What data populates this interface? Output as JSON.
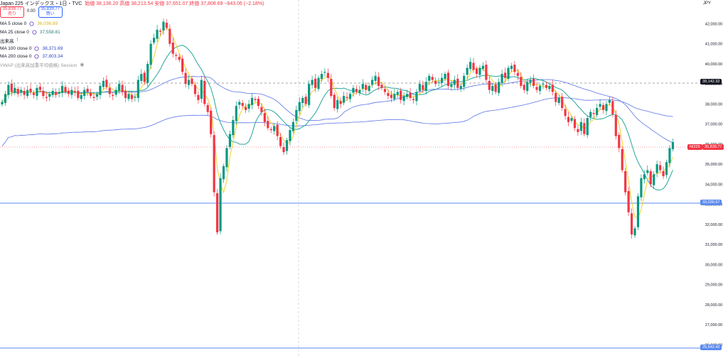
{
  "header": {
    "title": "Japan 225 インデックス・1日・TVC",
    "ohlc": "始値 38,136.20  高値 38,213.54  安値 37,651.07  終値 37,808.69  −843.06 (−2.18%)"
  },
  "trade": {
    "sell_price": "35,839.77",
    "sell_label": "売り",
    "spread": "0.00",
    "buy_price": "35,839.77",
    "buy_label": "買い"
  },
  "legend": [
    {
      "label": "MA 5 close 0",
      "value": "36,036.89",
      "color": "#f5d226"
    },
    {
      "label": "MA 25 close 0",
      "value": "37,558.81",
      "color": "#26a69a"
    },
    {
      "label": "出来高",
      "value": "",
      "color": "#f23645"
    },
    {
      "label": "MA 100 close 0",
      "value": "38,371.69",
      "color": "#5b73e8"
    },
    {
      "label": "MA 200 close 0",
      "value": "37,803.34",
      "color": "#5b73e8"
    },
    {
      "label": "VWAP (出来高加重平均価格) Session",
      "value": "",
      "color": "#999999"
    }
  ],
  "axis": {
    "currency": "JPY"
  },
  "badges": {
    "crosshair_price": "39,142.32",
    "current_symbol": "NI225",
    "current_price": "35,839.77",
    "hline1": "33,030.67",
    "hline2": "25,642.42"
  },
  "chart_data": {
    "type": "candlestick",
    "y_ticks": [
      42000,
      41000,
      40000,
      39000,
      38000,
      37000,
      36000,
      35000,
      34000,
      33000,
      32000,
      31000,
      30000,
      29000,
      28000,
      27000,
      26000
    ],
    "y_tick_labels": [
      "42,000.00",
      "41,000.00",
      "40,000.00",
      "39,000.00",
      "38,000.00",
      "37,000.00",
      "36,000.00",
      "35,000.00",
      "34,000.00",
      "33,000.00",
      "32,000.00",
      "31,000.00",
      "30,000.00",
      "29,000.00",
      "28,000.00",
      "27,000.00",
      "26,000.00"
    ],
    "ylim": [
      25480,
      42900
    ],
    "close_path": [
      38100,
      38500,
      38950,
      38600,
      38800,
      38500,
      38700,
      38450,
      38700,
      38600,
      38450,
      38800,
      38700,
      38400,
      38300,
      38500,
      38650,
      38450,
      38600,
      38900,
      38600,
      38500,
      38700,
      38600,
      38300,
      38450,
      38700,
      38600,
      38400,
      38300,
      38500,
      38900,
      39150,
      38850,
      38500,
      38400,
      38700,
      39000,
      38600,
      38300,
      38500,
      38250,
      38350,
      39200,
      39500,
      39100,
      40000,
      41000,
      41300,
      41700,
      41600,
      42100,
      41800,
      41000,
      40500,
      40400,
      40200,
      39600,
      39000,
      39200,
      39000,
      38500,
      38200,
      39200,
      38000,
      37600,
      36500,
      33600,
      31600,
      34300,
      34900,
      35800,
      36500,
      37200,
      37900,
      38100,
      37900,
      37700,
      38000,
      38300,
      38200,
      37900,
      37600,
      37100,
      36800,
      36700,
      36900,
      36400,
      35900,
      35600,
      36200,
      36700,
      37100,
      37700,
      38100,
      38300,
      38000,
      39000,
      39200,
      38800,
      39300,
      39500,
      39600,
      39300,
      38400,
      37800,
      38200,
      38000,
      38400,
      38300,
      38500,
      38800,
      38600,
      38700,
      39000,
      38700,
      38900,
      39200,
      39400,
      38900,
      38800,
      38600,
      38400,
      38300,
      38500,
      38600,
      38200,
      38400,
      38500,
      38300,
      38200,
      38600,
      39000,
      38700,
      39100,
      39400,
      39200,
      39000,
      39100,
      39300,
      39500,
      38900,
      39000,
      39200,
      38800,
      38900,
      39400,
      39800,
      40100,
      39700,
      39500,
      39800,
      39900,
      39200,
      38700,
      38900,
      38600,
      39100,
      39500,
      39300,
      39800,
      39900,
      39600,
      39400,
      38900,
      38700,
      39100,
      39200,
      38900,
      38700,
      38900,
      39000,
      38800,
      38900,
      38600,
      38100,
      38300,
      37800,
      37400,
      37100,
      37300,
      36800,
      36600,
      37100,
      36500,
      37300,
      37600,
      37500,
      37800,
      38000,
      37700,
      38000,
      38200,
      37500,
      36400,
      35800,
      34700,
      33600,
      32600,
      31500,
      31800,
      33400,
      34300,
      34500,
      34700,
      34000,
      34500,
      35000,
      34700,
      34400,
      35100,
      35800,
      36100
    ]
  }
}
